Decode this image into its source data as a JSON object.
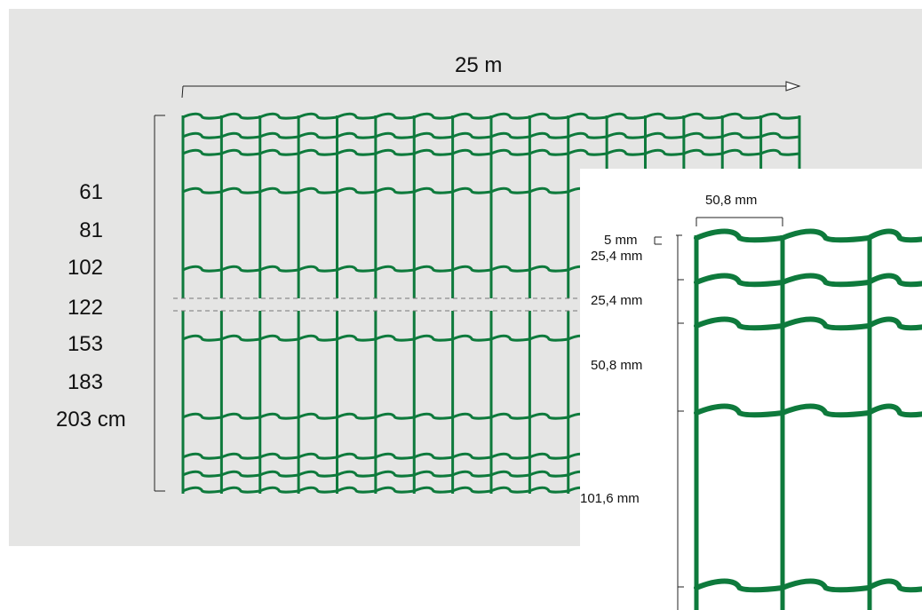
{
  "colors": {
    "background": "#e5e5e4",
    "wire": "#0e7a3c",
    "text": "#111111"
  },
  "main": {
    "length_label": "25 m",
    "heights": [
      "61",
      "81",
      "102",
      "122",
      "153",
      "183",
      "203 cm"
    ]
  },
  "detail": {
    "mesh_width_label": "50,8 mm",
    "wire_label": "5 mm",
    "spacings": [
      "25,4 mm",
      "25,4 mm",
      "50,8 mm",
      "101,6 mm"
    ]
  }
}
